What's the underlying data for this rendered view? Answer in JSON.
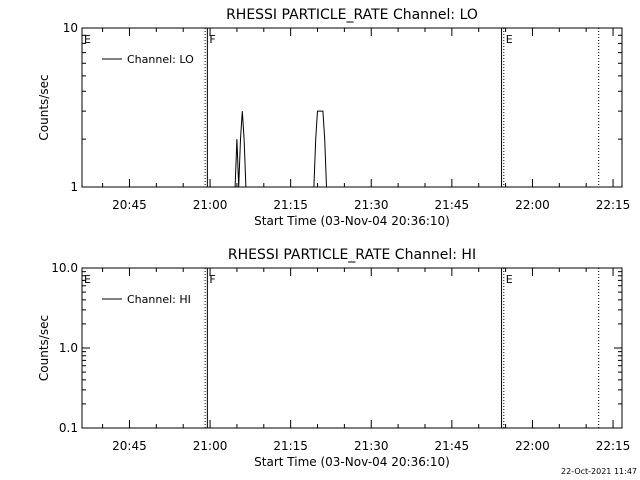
{
  "timestamp": "22-Oct-2021 11:47",
  "colors": {
    "background": "#ffffff",
    "foreground": "#000000"
  },
  "chart_data": [
    {
      "type": "line",
      "title": "RHESSI PARTICLE_RATE Channel: LO",
      "xlabel": "Start Time (03-Nov-04 20:36:10)",
      "ylabel": "Counts/sec",
      "y_scale": "log",
      "ylim": [
        1,
        10
      ],
      "xlim": [
        "20:36:10",
        "22:16:40"
      ],
      "grid": false,
      "legend_position": "top-left",
      "x_ticks": [
        "20:45",
        "21:00",
        "21:15",
        "21:30",
        "21:45",
        "22:00",
        "22:15"
      ],
      "y_ticks": [
        "1",
        "10"
      ],
      "series": [
        {
          "name": "Channel: LO",
          "x": [
            "21:04:40",
            "21:05:00",
            "21:05:20",
            "21:05:40",
            "21:06:00",
            "21:06:20",
            "21:06:40",
            "21:07:00",
            "21:07:20",
            "21:19:20",
            "21:19:40",
            "21:20:00",
            "21:20:20",
            "21:20:40",
            "21:21:00",
            "21:21:20",
            "21:21:40"
          ],
          "y": [
            1,
            2,
            1,
            2,
            3,
            2,
            1,
            1,
            1,
            1,
            2,
            3,
            3,
            3,
            3,
            2,
            1
          ]
        }
      ],
      "vlines": [
        {
          "x": "20:59:05",
          "style": "dotted"
        },
        {
          "x": "20:59:30",
          "style": "solid"
        },
        {
          "x": "21:54:15",
          "style": "solid"
        },
        {
          "x": "21:54:40",
          "style": "dotted"
        },
        {
          "x": "22:12:20",
          "style": "dotted"
        }
      ],
      "flags": [
        {
          "label": "E",
          "x": "20:36:10"
        },
        {
          "label": "F",
          "x": "20:59:30"
        },
        {
          "label": "E",
          "x": "21:54:40"
        }
      ]
    },
    {
      "type": "line",
      "title": "RHESSI PARTICLE_RATE Channel: HI",
      "xlabel": "Start Time (03-Nov-04 20:36:10)",
      "ylabel": "Counts/sec",
      "y_scale": "log",
      "ylim": [
        0.1,
        10
      ],
      "xlim": [
        "20:36:10",
        "22:16:40"
      ],
      "grid": false,
      "legend_position": "top-left",
      "x_ticks": [
        "20:45",
        "21:00",
        "21:15",
        "21:30",
        "21:45",
        "22:00",
        "22:15"
      ],
      "y_ticks": [
        "0.1",
        "1.0",
        "10.0"
      ],
      "series": [
        {
          "name": "Channel: HI",
          "x": [],
          "y": []
        }
      ],
      "vlines": [
        {
          "x": "20:59:05",
          "style": "dotted"
        },
        {
          "x": "20:59:30",
          "style": "solid"
        },
        {
          "x": "21:54:15",
          "style": "solid"
        },
        {
          "x": "21:54:40",
          "style": "dotted"
        },
        {
          "x": "22:12:20",
          "style": "dotted"
        }
      ],
      "flags": [
        {
          "label": "E",
          "x": "20:36:10"
        },
        {
          "label": "F",
          "x": "20:59:30"
        },
        {
          "label": "E",
          "x": "21:54:40"
        }
      ]
    }
  ]
}
